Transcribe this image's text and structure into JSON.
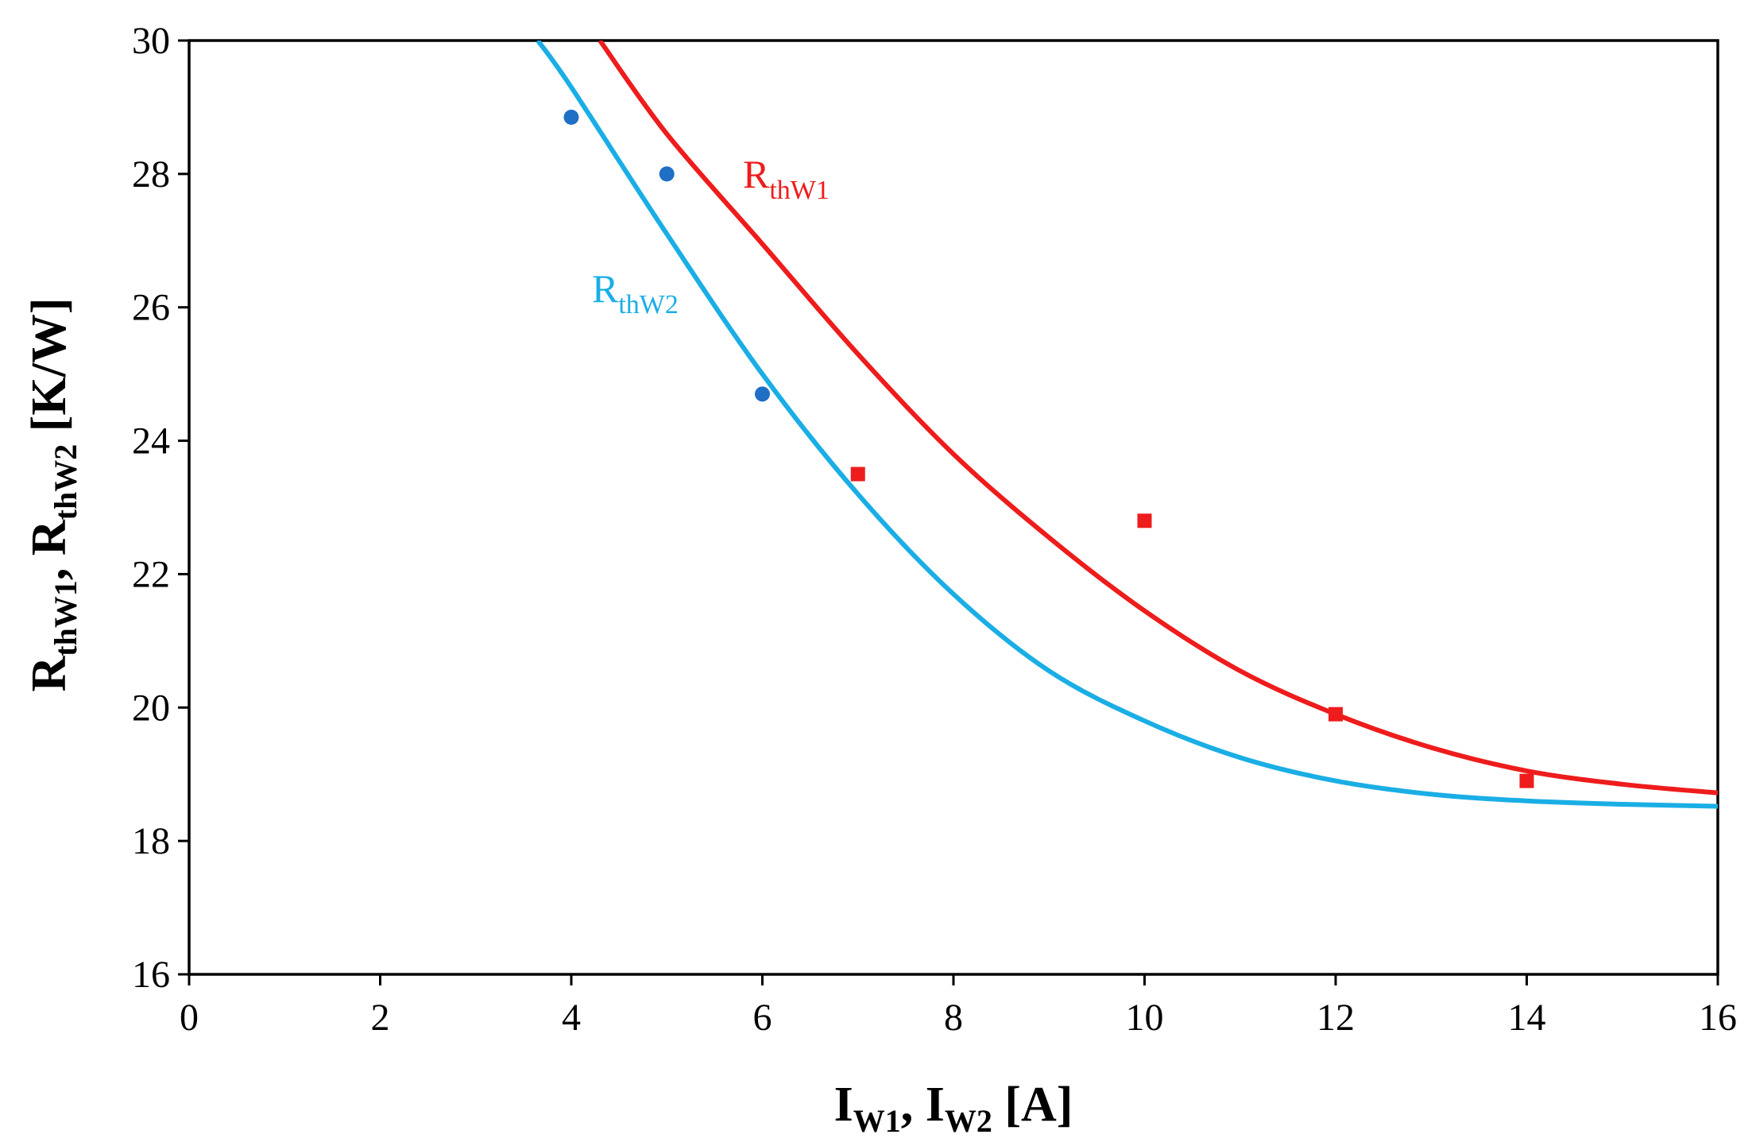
{
  "chart_data": {
    "type": "scatter",
    "title": "",
    "xlabel": {
      "main1": "I",
      "sub1": "W1",
      "sep": ", ",
      "main2": "I",
      "sub2": "W2",
      "unit": " [A]"
    },
    "ylabel": {
      "main1": "R",
      "sub1": "thW1",
      "sep": ", ",
      "main2": "R",
      "sub2": "thW2",
      "unit": " [K/W]"
    },
    "xlim": [
      0,
      16
    ],
    "ylim": [
      16,
      30
    ],
    "x_ticks": [
      0,
      2,
      4,
      6,
      8,
      10,
      12,
      14,
      16
    ],
    "y_ticks": [
      16,
      18,
      20,
      22,
      24,
      26,
      28,
      30
    ],
    "grid": false,
    "colors": {
      "w1": "#ee1c1c",
      "w2": "#1aaee5",
      "w2_points": "#1f6fc4",
      "axis": "#000000"
    },
    "series": [
      {
        "name": "RthW1",
        "label_main": "R",
        "label_sub": "thW1",
        "marker": "square",
        "points": [
          {
            "x": 7,
            "y": 23.5
          },
          {
            "x": 10,
            "y": 22.8
          },
          {
            "x": 12,
            "y": 19.9
          },
          {
            "x": 14,
            "y": 18.9
          }
        ],
        "fit_curve": [
          {
            "x": 4.3,
            "y": 30.0
          },
          {
            "x": 5.0,
            "y": 28.6
          },
          {
            "x": 6.0,
            "y": 26.95
          },
          {
            "x": 7.0,
            "y": 25.3
          },
          {
            "x": 8.0,
            "y": 23.8
          },
          {
            "x": 9.0,
            "y": 22.55
          },
          {
            "x": 10.0,
            "y": 21.45
          },
          {
            "x": 11.0,
            "y": 20.55
          },
          {
            "x": 12.0,
            "y": 19.9
          },
          {
            "x": 13.0,
            "y": 19.4
          },
          {
            "x": 14.0,
            "y": 19.05
          },
          {
            "x": 15.0,
            "y": 18.85
          },
          {
            "x": 16.0,
            "y": 18.72
          }
        ]
      },
      {
        "name": "RthW2",
        "label_main": "R",
        "label_sub": "thW2",
        "marker": "circle",
        "points": [
          {
            "x": 4,
            "y": 28.85
          },
          {
            "x": 5,
            "y": 28.0
          },
          {
            "x": 6,
            "y": 24.7
          }
        ],
        "fit_curve": [
          {
            "x": 3.65,
            "y": 30.0
          },
          {
            "x": 4.0,
            "y": 29.3
          },
          {
            "x": 5.0,
            "y": 27.1
          },
          {
            "x": 6.0,
            "y": 25.0
          },
          {
            "x": 7.0,
            "y": 23.2
          },
          {
            "x": 8.0,
            "y": 21.7
          },
          {
            "x": 9.0,
            "y": 20.55
          },
          {
            "x": 10.0,
            "y": 19.8
          },
          {
            "x": 11.0,
            "y": 19.25
          },
          {
            "x": 12.0,
            "y": 18.9
          },
          {
            "x": 13.0,
            "y": 18.7
          },
          {
            "x": 14.0,
            "y": 18.6
          },
          {
            "x": 15.0,
            "y": 18.55
          },
          {
            "x": 16.0,
            "y": 18.52
          }
        ]
      }
    ]
  }
}
